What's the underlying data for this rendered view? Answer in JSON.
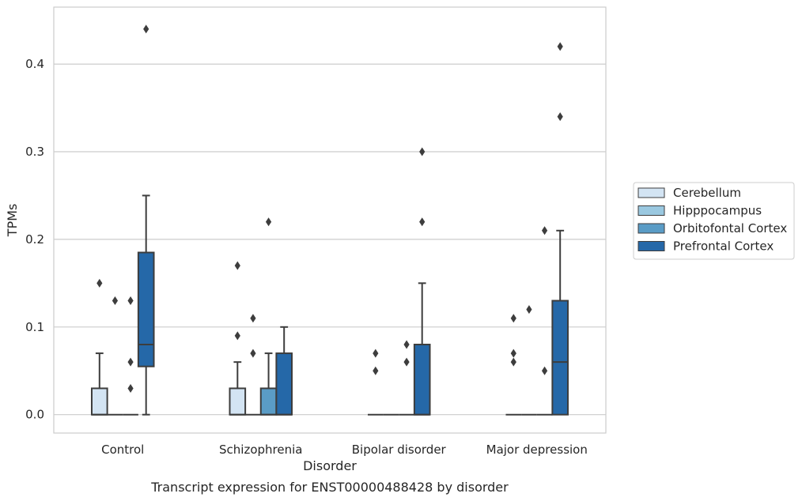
{
  "chart_data": {
    "type": "box",
    "title": "",
    "caption": "Transcript expression for ENST00000488428 by disorder",
    "xlabel": "Disorder",
    "ylabel": "TPMs",
    "ylim": [
      -0.021,
      0.465
    ],
    "yticks": [
      "0.0",
      "0.1",
      "0.2",
      "0.3",
      "0.4"
    ],
    "ytick_values": [
      0,
      0.1,
      0.2,
      0.3,
      0.4
    ],
    "grid": "horizontal",
    "legend_position": "right",
    "categories": [
      "Control",
      "Schizophrenia",
      "Bipolar disorder",
      "Major depression"
    ],
    "series": [
      {
        "name": "Cerebellum",
        "color": "#d3e4f3",
        "boxes": [
          {
            "q1": 0,
            "median": 0,
            "q3": 0.03,
            "whisker_low": 0,
            "whisker_high": 0.07,
            "outliers": [
              0.15
            ]
          },
          {
            "q1": 0,
            "median": 0,
            "q3": 0.03,
            "whisker_low": 0,
            "whisker_high": 0.06,
            "outliers": [
              0.17,
              0.09
            ]
          },
          {
            "q1": 0,
            "median": 0,
            "q3": 0,
            "whisker_low": 0,
            "whisker_high": 0,
            "outliers": [
              0.07,
              0.05
            ]
          },
          {
            "q1": 0,
            "median": 0,
            "q3": 0,
            "whisker_low": 0,
            "whisker_high": 0,
            "outliers": [
              0.11,
              0.07,
              0.06
            ]
          }
        ]
      },
      {
        "name": "Hipppocampus",
        "color": "#9ac8e0",
        "boxes": [
          {
            "q1": 0,
            "median": 0,
            "q3": 0,
            "whisker_low": 0,
            "whisker_high": 0,
            "outliers": [
              0.13
            ]
          },
          {
            "q1": 0,
            "median": 0,
            "q3": 0,
            "whisker_low": 0,
            "whisker_high": 0,
            "outliers": [
              0.11,
              0.07
            ]
          },
          {
            "q1": 0,
            "median": 0,
            "q3": 0,
            "whisker_low": 0,
            "whisker_high": 0,
            "outliers": []
          },
          {
            "q1": 0,
            "median": 0,
            "q3": 0,
            "whisker_low": 0,
            "whisker_high": 0,
            "outliers": [
              0.12
            ]
          }
        ]
      },
      {
        "name": "Orbitofontal Cortex",
        "color": "#5a9cc6",
        "boxes": [
          {
            "q1": 0,
            "median": 0,
            "q3": 0,
            "whisker_low": 0,
            "whisker_high": 0,
            "outliers": [
              0.13,
              0.06,
              0.03
            ]
          },
          {
            "q1": 0,
            "median": 0,
            "q3": 0.03,
            "whisker_low": 0,
            "whisker_high": 0.07,
            "outliers": [
              0.22
            ]
          },
          {
            "q1": 0,
            "median": 0,
            "q3": 0,
            "whisker_low": 0,
            "whisker_high": 0,
            "outliers": [
              0.08,
              0.06
            ]
          },
          {
            "q1": 0,
            "median": 0,
            "q3": 0,
            "whisker_low": 0,
            "whisker_high": 0,
            "outliers": [
              0.21,
              0.05
            ]
          }
        ]
      },
      {
        "name": "Prefrontal Cortex",
        "color": "#2568a8",
        "boxes": [
          {
            "q1": 0.055,
            "median": 0.08,
            "q3": 0.185,
            "whisker_low": 0,
            "whisker_high": 0.25,
            "outliers": [
              0.44
            ]
          },
          {
            "q1": 0,
            "median": 0,
            "q3": 0.07,
            "whisker_low": 0,
            "whisker_high": 0.1,
            "outliers": []
          },
          {
            "q1": 0,
            "median": 0,
            "q3": 0.08,
            "whisker_low": 0,
            "whisker_high": 0.15,
            "outliers": [
              0.3,
              0.22
            ]
          },
          {
            "q1": 0,
            "median": 0.06,
            "q3": 0.13,
            "whisker_low": 0,
            "whisker_high": 0.21,
            "outliers": [
              0.42,
              0.34
            ]
          }
        ]
      }
    ]
  }
}
